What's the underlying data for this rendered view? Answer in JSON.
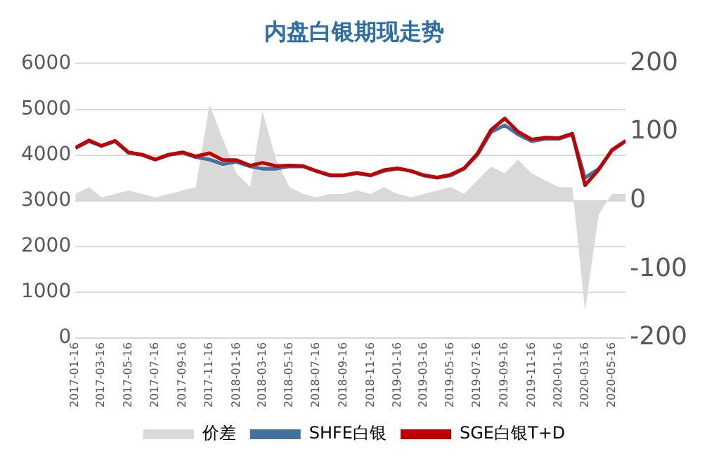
{
  "chart_data": {
    "type": "line",
    "title": "内盘白银期现走势",
    "x": [
      "2017-01-16",
      "2017-02-16",
      "2017-03-16",
      "2017-04-16",
      "2017-05-16",
      "2017-06-16",
      "2017-07-16",
      "2017-08-16",
      "2017-09-16",
      "2017-10-16",
      "2017-11-16",
      "2017-12-16",
      "2018-01-16",
      "2018-02-16",
      "2018-03-16",
      "2018-04-16",
      "2018-05-16",
      "2018-06-16",
      "2018-07-16",
      "2018-08-16",
      "2018-09-16",
      "2018-10-16",
      "2018-11-16",
      "2018-12-16",
      "2019-01-16",
      "2019-02-16",
      "2019-03-16",
      "2019-04-16",
      "2019-05-16",
      "2019-06-16",
      "2019-07-16",
      "2019-08-16",
      "2019-09-16",
      "2019-10-16",
      "2019-11-16",
      "2019-12-16",
      "2020-01-16",
      "2020-02-16",
      "2020-03-16",
      "2020-04-16",
      "2020-05-16",
      "2020-06-16"
    ],
    "series": [
      {
        "name": "价差",
        "type": "area",
        "axis": "y2",
        "color": "#d9d9d9",
        "values": [
          10,
          20,
          5,
          10,
          15,
          10,
          5,
          10,
          15,
          20,
          140,
          90,
          40,
          20,
          130,
          60,
          20,
          10,
          5,
          10,
          10,
          15,
          10,
          20,
          10,
          5,
          10,
          15,
          20,
          10,
          30,
          50,
          40,
          60,
          40,
          30,
          20,
          20,
          -160,
          -20,
          10,
          10
        ]
      },
      {
        "name": "SHFE白银",
        "type": "line",
        "color": "#41719c",
        "values": [
          4150,
          4300,
          4200,
          4300,
          4050,
          4000,
          3900,
          4000,
          4050,
          3950,
          3900,
          3800,
          3850,
          3750,
          3700,
          3700,
          3750,
          3750,
          3650,
          3550,
          3550,
          3600,
          3550,
          3650,
          3700,
          3650,
          3550,
          3500,
          3550,
          3700,
          4000,
          4500,
          4650,
          4450,
          4300,
          4350,
          4350,
          4450,
          3500,
          3700,
          4100,
          4300
        ]
      },
      {
        "name": "SGE白银T+D",
        "type": "line",
        "color": "#c00000",
        "values": [
          4160,
          4320,
          4200,
          4310,
          4060,
          4010,
          3900,
          4010,
          4060,
          3970,
          4040,
          3890,
          3890,
          3770,
          3830,
          3760,
          3770,
          3760,
          3650,
          3560,
          3560,
          3610,
          3560,
          3670,
          3710,
          3650,
          3560,
          3510,
          3570,
          3710,
          4030,
          4550,
          4800,
          4510,
          4340,
          4380,
          4370,
          4470,
          3340,
          3680,
          4110,
          4310
        ]
      }
    ],
    "xlim": [
      "2017-01-16",
      "2020-06-16"
    ],
    "xticks": [
      "2017-01-16",
      "2017-03-16",
      "2017-05-16",
      "2017-07-16",
      "2017-09-16",
      "2017-11-16",
      "2018-01-16",
      "2018-03-16",
      "2018-05-16",
      "2018-07-16",
      "2018-09-16",
      "2018-11-16",
      "2019-01-16",
      "2019-03-16",
      "2019-05-16",
      "2019-07-16",
      "2019-09-16",
      "2019-11-16",
      "2020-01-16",
      "2020-03-16",
      "2020-05-16"
    ],
    "ylim": [
      0,
      6000
    ],
    "yticks": [
      0,
      1000,
      2000,
      3000,
      4000,
      5000,
      6000
    ],
    "y2lim": [
      -200,
      200
    ],
    "y2ticks": [
      -200,
      -100,
      0,
      100,
      200
    ],
    "grid": "y",
    "legend": "bottom",
    "marker": "none"
  }
}
